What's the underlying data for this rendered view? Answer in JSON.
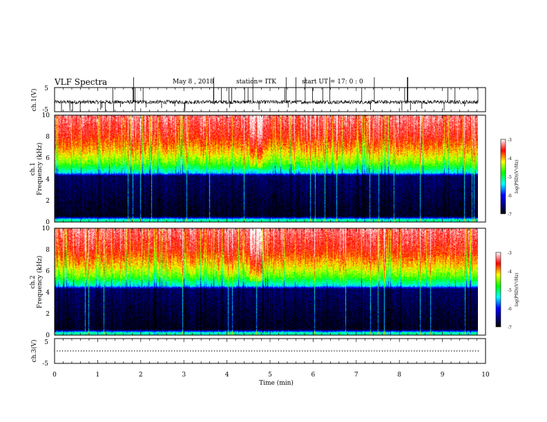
{
  "header": {
    "title": "VLF Spectra",
    "date": "May 8 , 2018",
    "station": "station= ITK",
    "start": "start  UT  =   17: 0  : 0"
  },
  "chart_data": [
    {
      "type": "line",
      "name": "ch1-waveform",
      "ylabel": "ch.1(V)",
      "ylim": [
        -5,
        5
      ],
      "yticks": [
        "5",
        "-5"
      ],
      "xlim": [
        0,
        10
      ],
      "trace": {
        "baseline": -1.0,
        "noise_amplitude": 1.6,
        "spikes": "frequent upward/downward spikes to the panel limits"
      }
    },
    {
      "type": "heatmap",
      "name": "ch1-spectrogram",
      "ylabel": "ch.1\nFrequency (kHz)",
      "ylim": [
        0,
        10
      ],
      "yticks": [
        "0",
        "2",
        "4",
        "6",
        "8",
        "10"
      ],
      "xlim": [
        0,
        10
      ],
      "data_end_min": 9.83,
      "colorbar": {
        "label": "log(PSD)(V²/Hz)",
        "range": [
          -7,
          -3
        ],
        "ticks": [
          "-3",
          "-4",
          "-5",
          "-6",
          "-7"
        ]
      },
      "profile": [
        {
          "freq_khz": 0.2,
          "log_psd": -5.2
        },
        {
          "freq_khz": 0.5,
          "log_psd": -6.9
        },
        {
          "freq_khz": 4.3,
          "log_psd": -6.6
        },
        {
          "freq_khz": 4.6,
          "log_psd": -5.4
        },
        {
          "freq_khz": 5.5,
          "log_psd": -4.6
        },
        {
          "freq_khz": 6.5,
          "log_psd": -4.1
        },
        {
          "freq_khz": 8.0,
          "log_psd": -3.6
        },
        {
          "freq_khz": 10.0,
          "log_psd": -3.3
        }
      ],
      "events_min": [
        4.6,
        4.75
      ]
    },
    {
      "type": "heatmap",
      "name": "ch2-spectrogram",
      "ylabel": "ch.2\nFrequency (kHz)",
      "ylim": [
        0,
        10
      ],
      "yticks": [
        "0",
        "2",
        "4",
        "6",
        "8",
        "10"
      ],
      "xlim": [
        0,
        10
      ],
      "data_end_min": 9.83,
      "colorbar": {
        "label": "log(PSD)(V²/Hz)",
        "range": [
          -7,
          -3
        ],
        "ticks": [
          "-3",
          "-4",
          "-5",
          "-6",
          "-7"
        ]
      },
      "profile": [
        {
          "freq_khz": 0.2,
          "log_psd": -5.2
        },
        {
          "freq_khz": 0.5,
          "log_psd": -6.9
        },
        {
          "freq_khz": 4.3,
          "log_psd": -6.6
        },
        {
          "freq_khz": 4.6,
          "log_psd": -5.4
        },
        {
          "freq_khz": 5.5,
          "log_psd": -4.6
        },
        {
          "freq_khz": 6.5,
          "log_psd": -4.1
        },
        {
          "freq_khz": 8.0,
          "log_psd": -3.6
        },
        {
          "freq_khz": 10.0,
          "log_psd": -3.3
        }
      ],
      "events_min": [
        4.6,
        4.75
      ]
    },
    {
      "type": "line",
      "name": "ch3-waveform",
      "ylabel": "ch.3(V)",
      "ylim": [
        -5,
        5
      ],
      "yticks": [
        "5",
        "-5"
      ],
      "xlim": [
        0,
        10
      ],
      "xticks": [
        "0",
        "1",
        "2",
        "3",
        "4",
        "5",
        "6",
        "7",
        "8",
        "9",
        "10"
      ],
      "xlabel": "Time  (min)",
      "trace": {
        "baseline": 0.0,
        "noise_amplitude": 0.0,
        "spikes": "none (flat dotted line)"
      }
    }
  ],
  "colors": {
    "axis": "#000000",
    "colormap": [
      "#000000",
      "#0000ff",
      "#00ffff",
      "#00ff00",
      "#ffff00",
      "#ff0000",
      "#ffffff"
    ]
  }
}
